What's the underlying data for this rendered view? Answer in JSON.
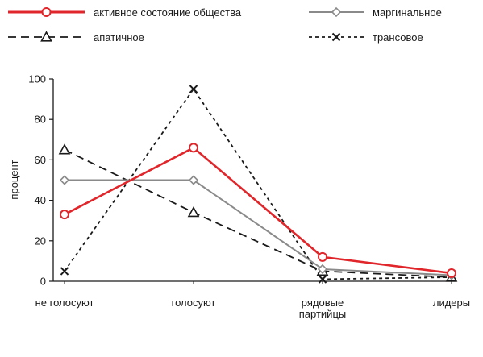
{
  "chart_data": {
    "type": "line",
    "title": "",
    "xlabel": "",
    "ylabel": "процент",
    "categories": [
      "не голосуют",
      "голосуют",
      "рядовые партийцы",
      "лидеры"
    ],
    "ylim": [
      0,
      100
    ],
    "yticks": [
      0,
      20,
      40,
      60,
      80,
      100
    ],
    "grid": false,
    "legend_position": "top",
    "series": [
      {
        "name": "активное состояние общества",
        "values": [
          33,
          66,
          12,
          4
        ],
        "color": "#e0262b",
        "style": "solid",
        "marker": "circle"
      },
      {
        "name": "маргинальное",
        "values": [
          50,
          50,
          6,
          3
        ],
        "color": "#8a8a8a",
        "style": "solid",
        "marker": "diamond"
      },
      {
        "name": "апатичное",
        "values": [
          65,
          34,
          5,
          2
        ],
        "color": "#1a1a1a",
        "style": "dashed",
        "marker": "triangle"
      },
      {
        "name": "трансовое",
        "values": [
          5,
          95,
          1,
          2
        ],
        "color": "#1a1a1a",
        "style": "dotted",
        "marker": "x"
      }
    ]
  }
}
